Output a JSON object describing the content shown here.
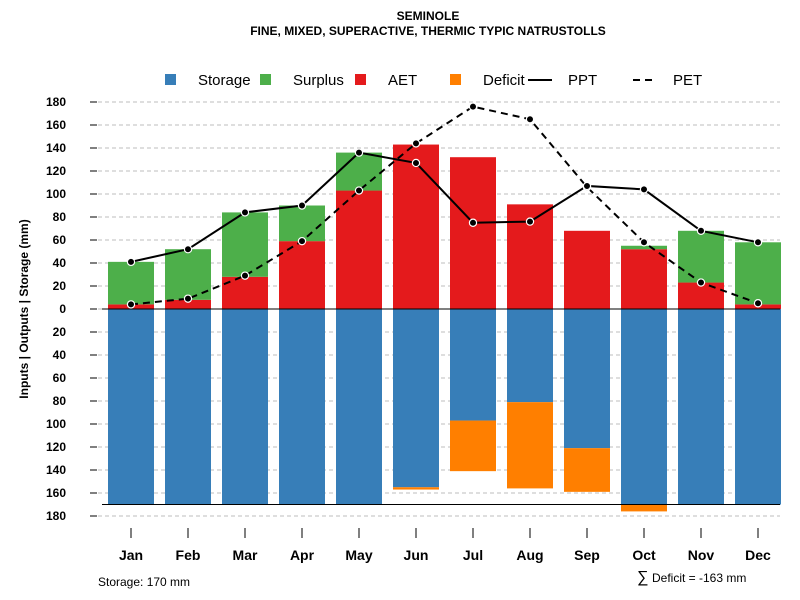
{
  "chart_data": {
    "type": "bar",
    "title": "SEMINOLE",
    "subtitle": "FINE, MIXED, SUPERACTIVE, THERMIC TYPIC NATRUSTOLLS",
    "ylabel": "Inputs | Outputs | Storage    (mm)",
    "xlabel": "",
    "categories": [
      "Jan",
      "Feb",
      "Mar",
      "Apr",
      "May",
      "Jun",
      "Jul",
      "Aug",
      "Sep",
      "Oct",
      "Nov",
      "Dec"
    ],
    "ylim": [
      -180,
      180
    ],
    "yticks": [
      180,
      160,
      140,
      120,
      100,
      80,
      60,
      40,
      20,
      0,
      20,
      40,
      60,
      80,
      100,
      120,
      140,
      160,
      180
    ],
    "grid": true,
    "legend_position": "top",
    "legend": [
      {
        "label": "Storage",
        "kind": "box",
        "color": "#377eb8"
      },
      {
        "label": "Surplus",
        "kind": "box",
        "color": "#4daf4a"
      },
      {
        "label": "AET",
        "kind": "box",
        "color": "#e41a1c"
      },
      {
        "label": "Deficit",
        "kind": "box",
        "color": "#ff7f00"
      },
      {
        "label": "PPT",
        "kind": "solid-line",
        "color": "#000000"
      },
      {
        "label": "PET",
        "kind": "dashed-line",
        "color": "#000000"
      }
    ],
    "series": [
      {
        "name": "AET",
        "color": "#e41a1c",
        "values": [
          4,
          8,
          28,
          59,
          103,
          143,
          132,
          91,
          68,
          52,
          23,
          4
        ]
      },
      {
        "name": "Surplus",
        "color": "#4daf4a",
        "values": [
          37,
          44,
          56,
          31,
          33,
          0,
          0,
          0,
          0,
          3,
          45,
          54
        ]
      },
      {
        "name": "Storage",
        "color": "#377eb8",
        "values": [
          -170,
          -170,
          -170,
          -170,
          -170,
          -155,
          -97,
          -81,
          -121,
          -170,
          -170,
          -170
        ]
      },
      {
        "name": "Deficit",
        "color": "#ff7f00",
        "values": [
          0,
          0,
          0,
          0,
          0,
          -2,
          -44,
          -75,
          -38,
          -6,
          0,
          0
        ]
      },
      {
        "name": "PPT",
        "color": "#000000",
        "values": [
          41,
          52,
          84,
          90,
          136,
          127,
          75,
          76,
          107,
          104,
          68,
          58
        ]
      },
      {
        "name": "PET",
        "color": "#000000",
        "values": [
          4,
          9,
          29,
          59,
          103,
          144,
          176,
          165,
          106,
          58,
          23,
          5
        ]
      }
    ],
    "storage_capacity": 170,
    "annotations": {
      "storage": "Storage: 170 mm",
      "deficit_symbol": "∑",
      "deficit": "Deficit = -163 mm"
    }
  }
}
